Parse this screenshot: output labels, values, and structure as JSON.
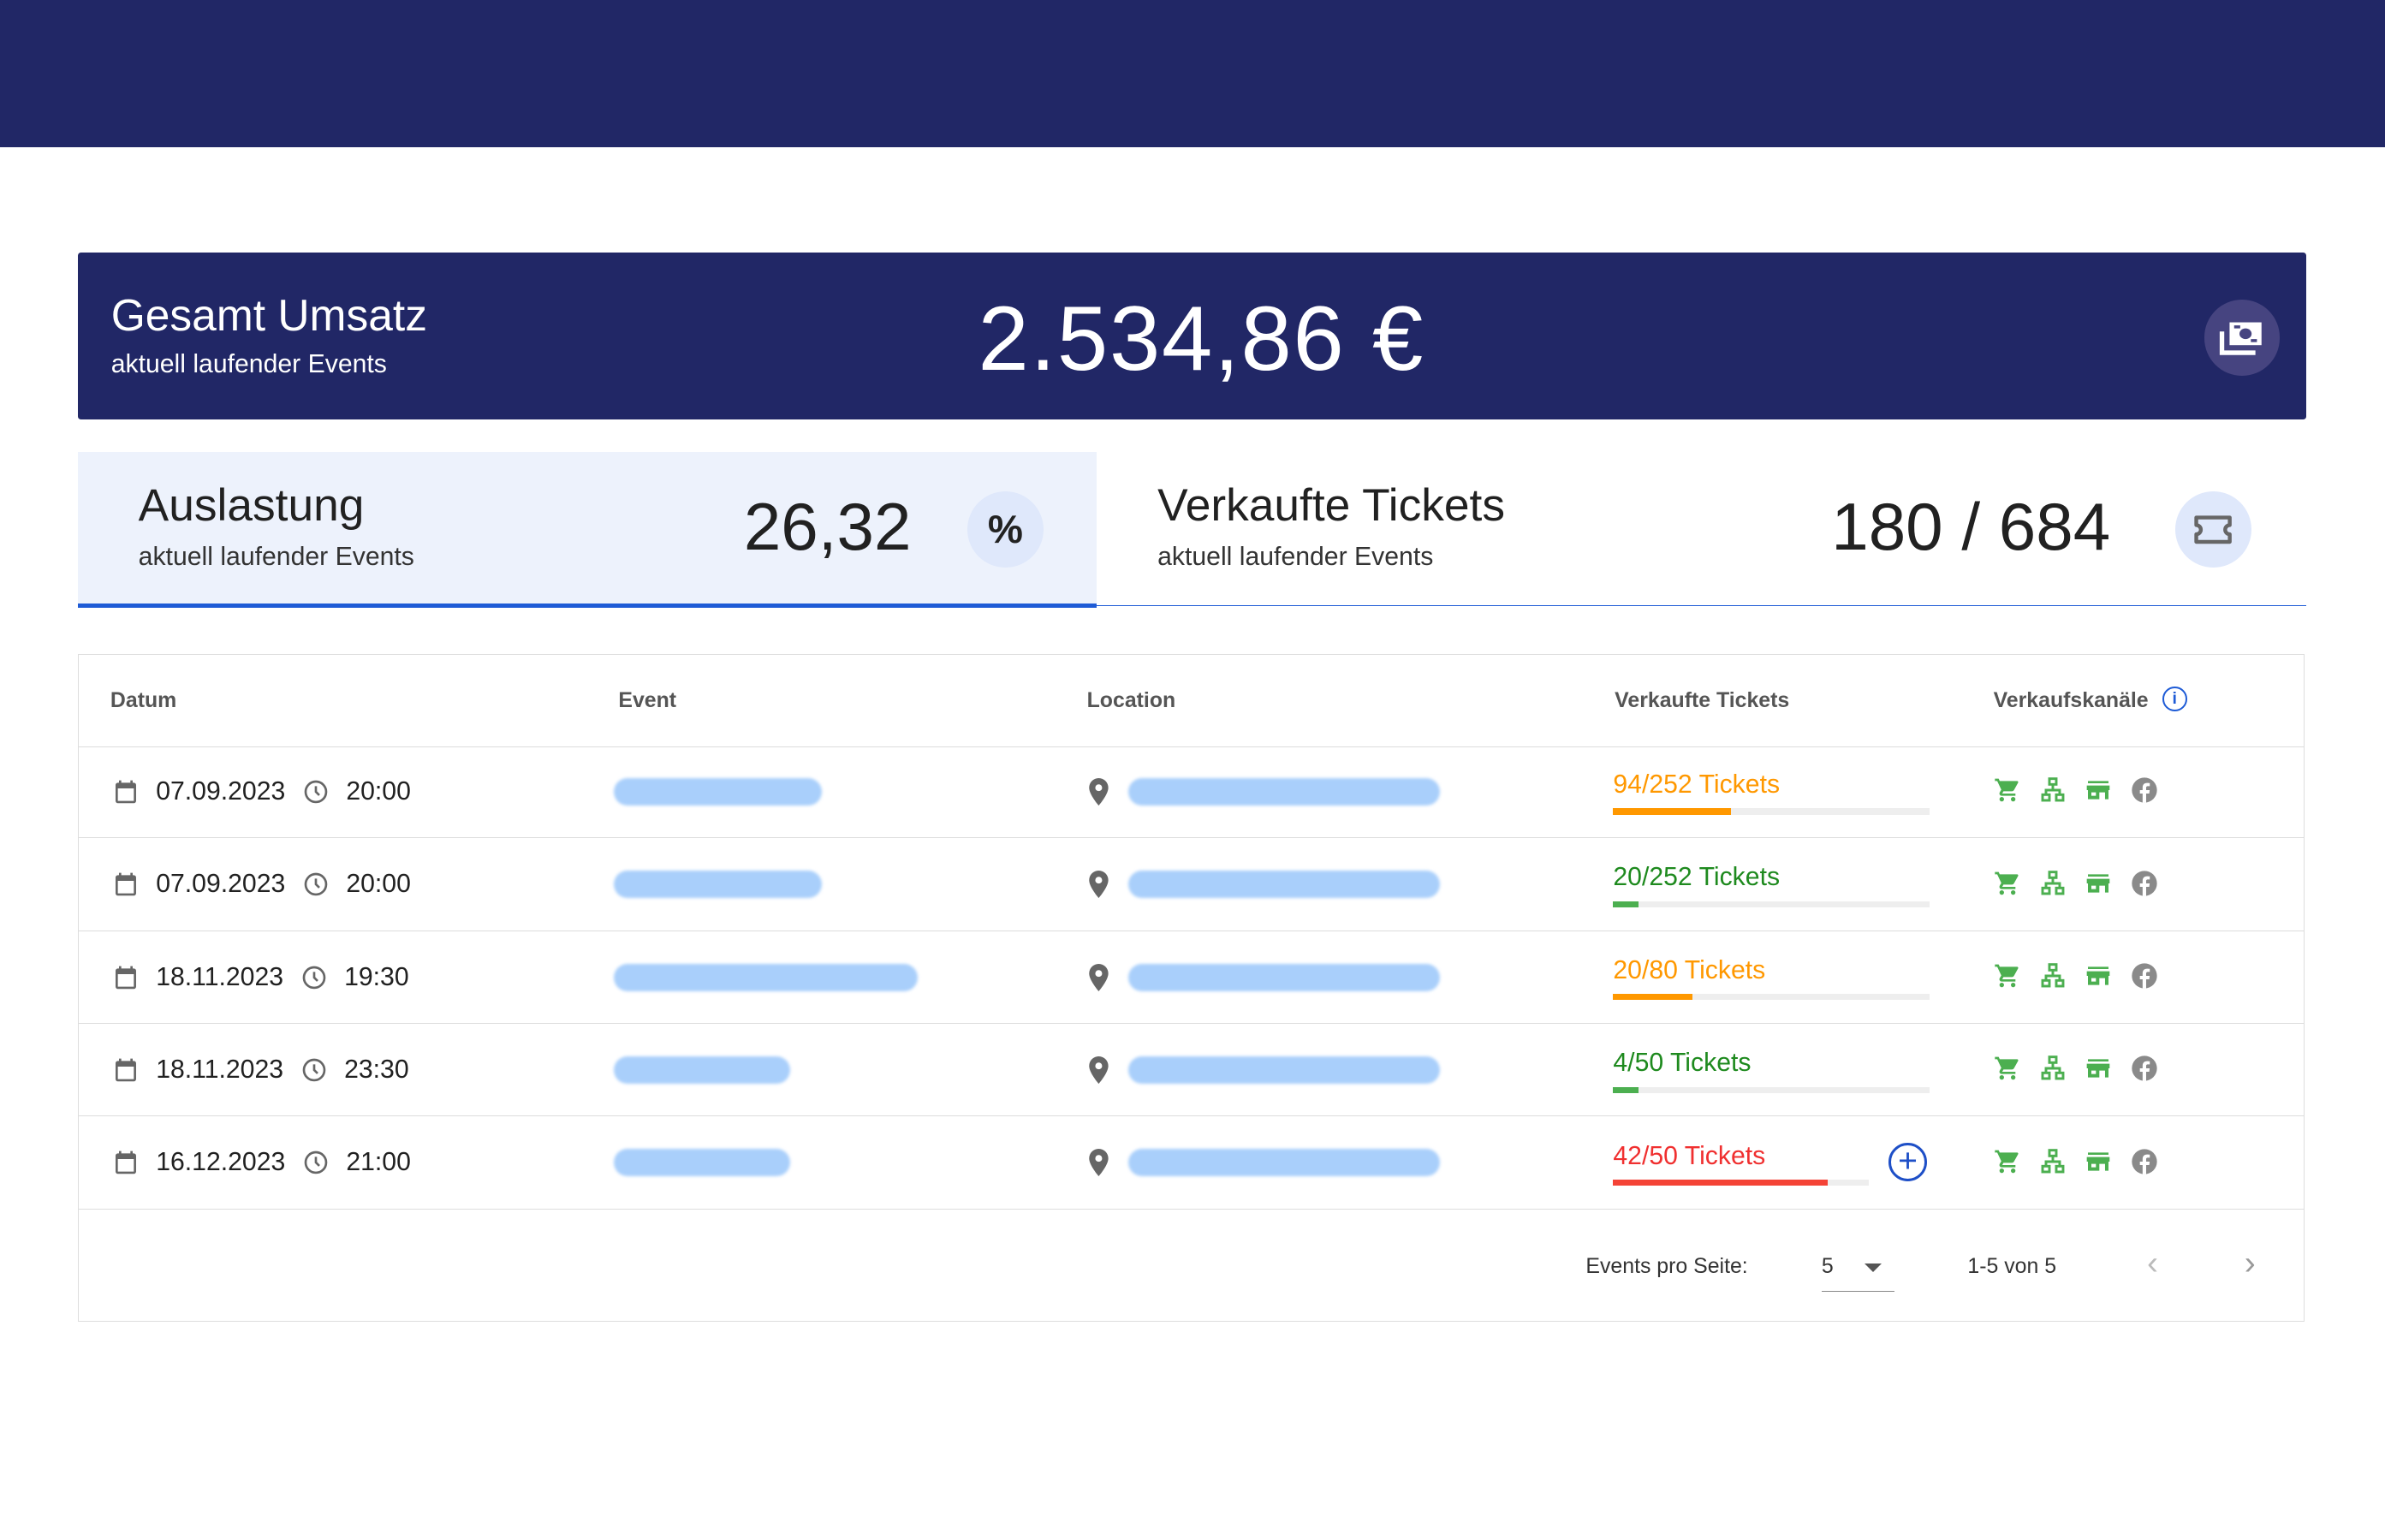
{
  "revenue": {
    "title": "Gesamt Umsatz",
    "subtitle": "aktuell laufender Events",
    "value": "2.534,86 €",
    "icon": "money-icon"
  },
  "tabs": [
    {
      "title": "Auslastung",
      "subtitle": "aktuell laufender Events",
      "value": "26,32",
      "icon": "percent-icon",
      "active": true
    },
    {
      "title": "Verkaufte Tickets",
      "subtitle": "aktuell laufender Events",
      "value": "180 / 684",
      "icon": "ticket-icon",
      "active": false
    }
  ],
  "table": {
    "headers": {
      "date": "Datum",
      "event": "Event",
      "location": "Location",
      "tickets": "Verkaufte Tickets",
      "channels": "Verkaufskanäle"
    },
    "rows": [
      {
        "date": "07.09.2023",
        "time": "20:00",
        "tickets": "94/252 Tickets",
        "sold": 94,
        "capacity": 252,
        "color": "#ff9800"
      },
      {
        "date": "07.09.2023",
        "time": "20:00",
        "tickets": "20/252 Tickets",
        "sold": 20,
        "capacity": 252,
        "color": "#1e8a1e"
      },
      {
        "date": "18.11.2023",
        "time": "19:30",
        "tickets": "20/80 Tickets",
        "sold": 20,
        "capacity": 80,
        "color": "#ff9800"
      },
      {
        "date": "18.11.2023",
        "time": "23:30",
        "tickets": "4/50 Tickets",
        "sold": 4,
        "capacity": 50,
        "color": "#1e8a1e"
      },
      {
        "date": "16.12.2023",
        "time": "21:00",
        "tickets": "42/50 Tickets",
        "sold": 42,
        "capacity": 50,
        "color": "#f03030",
        "add_button": true
      }
    ],
    "channel_icons": [
      "cart-icon",
      "network-icon",
      "store-icon",
      "facebook-icon"
    ]
  },
  "pagination": {
    "per_page_label": "Events pro Seite:",
    "per_page": "5",
    "range": "1-5 von 5"
  }
}
